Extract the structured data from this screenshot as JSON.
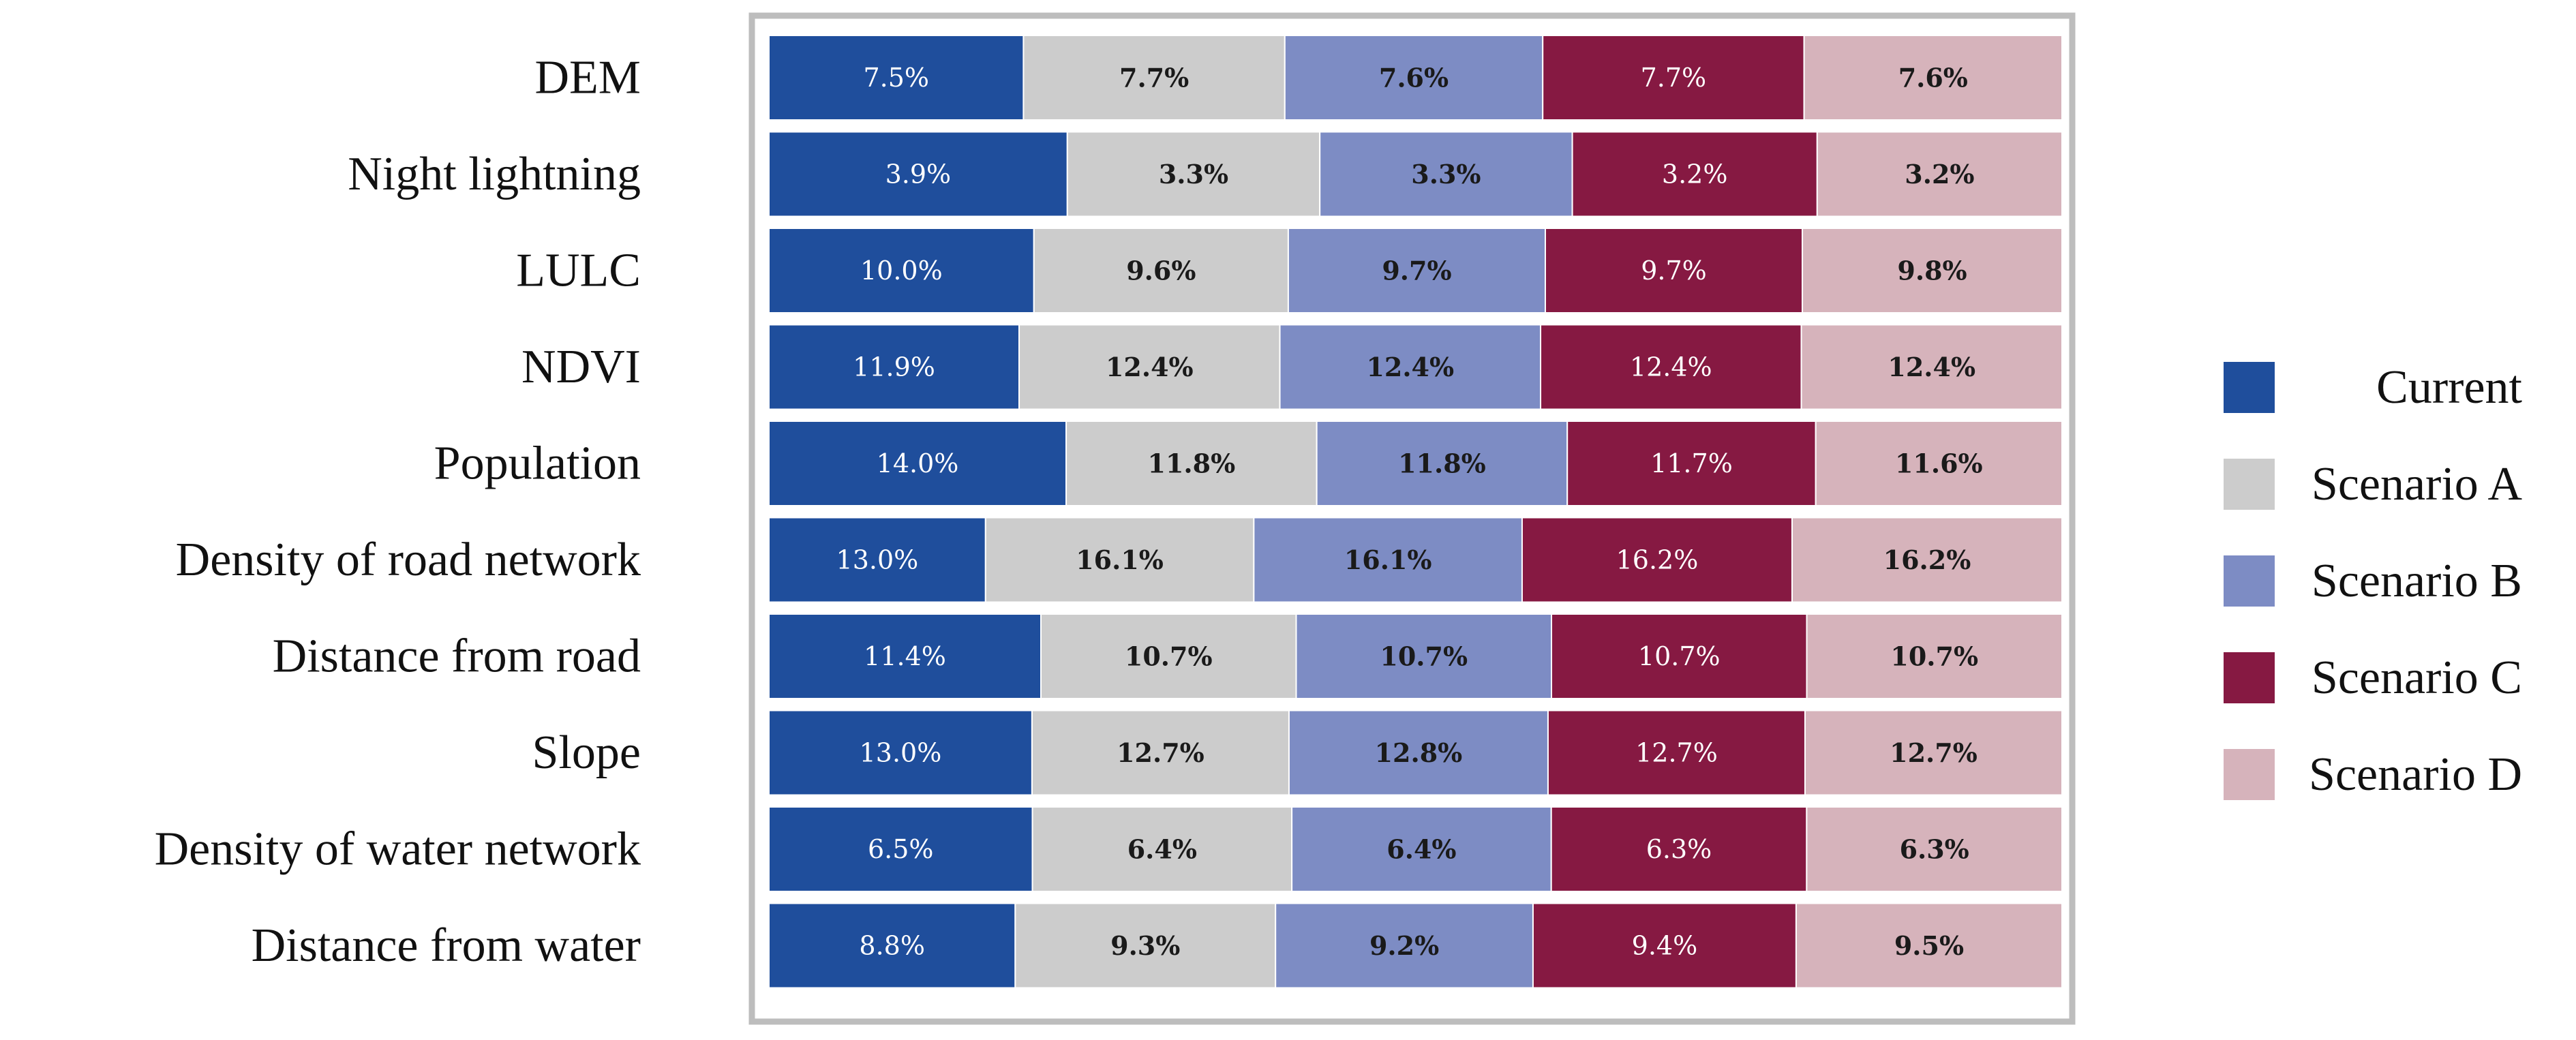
{
  "chart_data": {
    "type": "bar",
    "orientation": "horizontal",
    "stacked": true,
    "normalized": true,
    "categories": [
      "DEM",
      "Night lightning",
      "LULC",
      "NDVI",
      "Population",
      "Density of road network",
      "Distance from road",
      "Slope",
      "Density of water network",
      "Distance from water"
    ],
    "series": [
      {
        "name": "Current",
        "color": "#1f4e9c",
        "text_color": "dark",
        "values": [
          7.5,
          3.9,
          10.0,
          11.9,
          14.0,
          13.0,
          11.4,
          13.0,
          6.5,
          8.8
        ],
        "labels": [
          "7.5%",
          "3.9%",
          "10.0%",
          "11.9%",
          "14.0%",
          "13.0%",
          "11.4%",
          "13.0%",
          "6.5%",
          "8.8%"
        ]
      },
      {
        "name": "Scenario A",
        "color": "#cccccc",
        "text_color": "light",
        "values": [
          7.7,
          3.3,
          9.6,
          12.4,
          11.8,
          16.1,
          10.7,
          12.7,
          6.4,
          9.3
        ],
        "labels": [
          "7.7%",
          "3.3%",
          "9.6%",
          "12.4%",
          "11.8%",
          "16.1%",
          "10.7%",
          "12.7%",
          "6.4%",
          "9.3%"
        ]
      },
      {
        "name": "Scenario B",
        "color": "#7d8cc4",
        "text_color": "light",
        "values": [
          7.6,
          3.3,
          9.7,
          12.4,
          11.8,
          16.1,
          10.7,
          12.8,
          6.4,
          9.2
        ],
        "labels": [
          "7.6%",
          "3.3%",
          "9.7%",
          "12.4%",
          "11.8%",
          "16.1%",
          "10.7%",
          "12.8%",
          "6.4%",
          "9.2%"
        ]
      },
      {
        "name": "Scenario C",
        "color": "#861942",
        "text_color": "dark",
        "values": [
          7.7,
          3.2,
          9.7,
          12.4,
          11.7,
          16.2,
          10.7,
          12.7,
          6.3,
          9.4
        ],
        "labels": [
          "7.7%",
          "3.2%",
          "9.7%",
          "12.4%",
          "11.7%",
          "16.2%",
          "10.7%",
          "12.7%",
          "6.3%",
          "9.4%"
        ]
      },
      {
        "name": "Scenario D",
        "color": "#d6b3bb",
        "text_color": "light",
        "values": [
          7.6,
          3.2,
          9.8,
          12.4,
          11.6,
          16.2,
          10.7,
          12.7,
          6.3,
          9.5
        ],
        "labels": [
          "7.6%",
          "3.2%",
          "9.8%",
          "12.4%",
          "11.6%",
          "16.2%",
          "10.7%",
          "12.7%",
          "6.3%",
          "9.5%"
        ]
      }
    ],
    "legend": "right",
    "grid": false,
    "title": "",
    "xlabel": "",
    "ylabel": ""
  }
}
